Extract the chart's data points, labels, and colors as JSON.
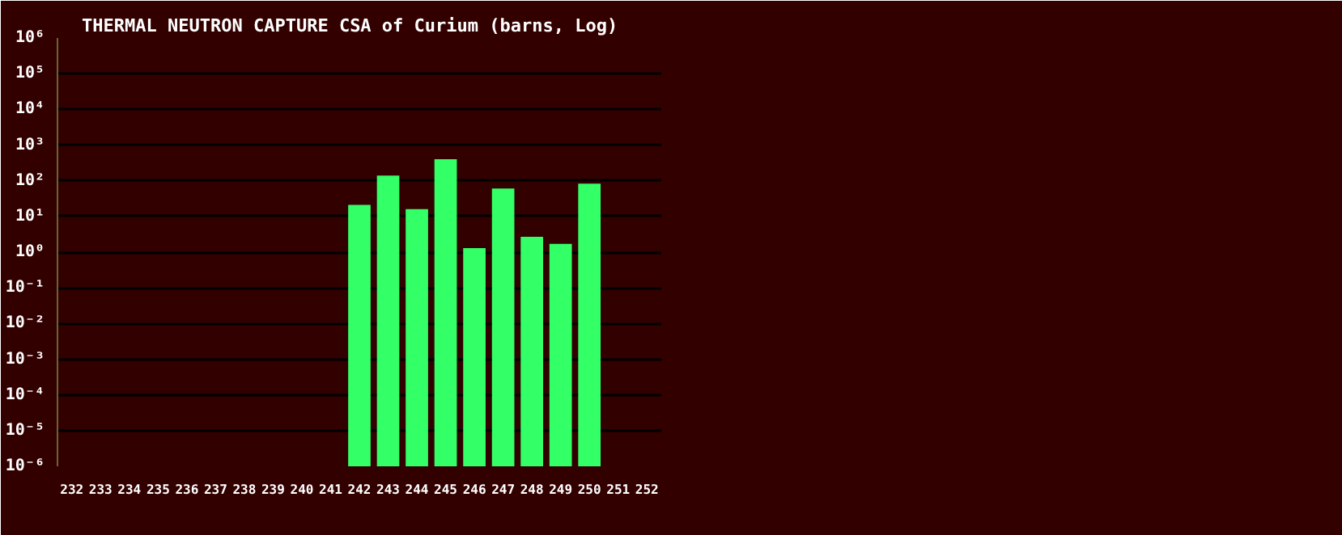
{
  "chart_data": {
    "type": "bar",
    "title": "THERMAL NEUTRON CAPTURE CSA of Curium (barns, Log)",
    "categories": [
      "232",
      "233",
      "234",
      "235",
      "236",
      "237",
      "238",
      "239",
      "240",
      "241",
      "242",
      "243",
      "244",
      "245",
      "246",
      "247",
      "248",
      "249",
      "250",
      "251",
      "252"
    ],
    "series": [
      {
        "color": "#33ff66",
        "values": [
          null,
          null,
          null,
          null,
          null,
          null,
          null,
          null,
          null,
          null,
          21,
          140,
          16,
          400,
          1.3,
          61,
          2.7,
          1.7,
          83,
          null,
          null
        ]
      }
    ],
    "log": true,
    "ylim": [
      1e-06,
      1000000
    ],
    "yticks": [
      {
        "value": 1e-06,
        "label": "10⁻⁶"
      },
      {
        "value": 1e-05,
        "label": "10⁻⁵"
      },
      {
        "value": 0.0001,
        "label": "10⁻⁴"
      },
      {
        "value": 0.001,
        "label": "10⁻³"
      },
      {
        "value": 0.01,
        "label": "10⁻²"
      },
      {
        "value": 0.1,
        "label": "10⁻¹"
      },
      {
        "value": 1,
        "label": "10⁰"
      },
      {
        "value": 10,
        "label": "10¹"
      },
      {
        "value": 100,
        "label": "10²"
      },
      {
        "value": 1000,
        "label": "10³"
      },
      {
        "value": 10000,
        "label": "10⁴"
      },
      {
        "value": 100000,
        "label": "10⁵"
      },
      {
        "value": 1000000,
        "label": "10⁶"
      }
    ],
    "grid": "y"
  }
}
